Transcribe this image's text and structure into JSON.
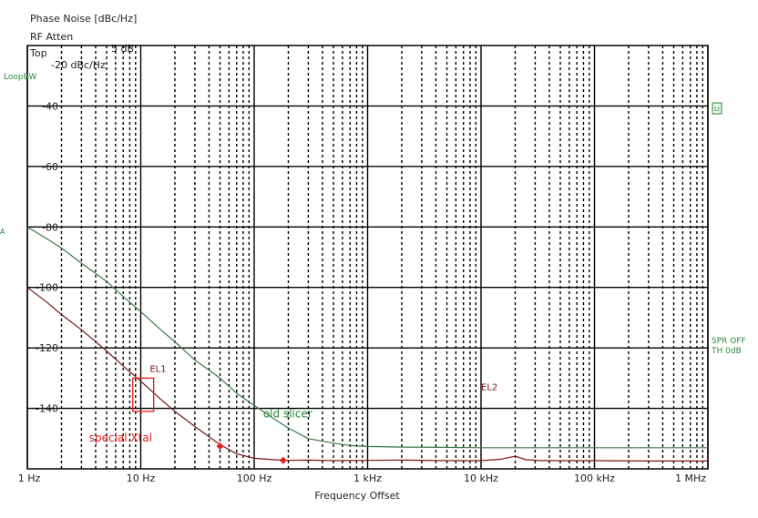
{
  "header": {
    "line1": "Phase Noise [dBc/Hz]",
    "atten_label": "RF Atten",
    "atten_value": "5 dB",
    "top_label": "Top",
    "top_value": "-20 dBc/Hz"
  },
  "side_labels": {
    "loop_bw": "LoopBW",
    "marker_box": "LI",
    "spr_off": "SPR OFF",
    "th": "TH 0dB",
    "left_mark": "A"
  },
  "colors": {
    "series_old": "#3a7a4a",
    "series_xtal": "#7a1515",
    "marker_red": "#dd1f1f",
    "side_green": "#2a8a3a",
    "grid_major": "#000000",
    "grid_minor": "#000000"
  },
  "chart_data": {
    "type": "line",
    "title": "Phase Noise [dBc/Hz]",
    "xlabel": "Frequency Offset",
    "ylabel": "",
    "x_scale": "log",
    "xlim": [
      1,
      1000000
    ],
    "ylim": [
      -160,
      -20
    ],
    "grid": true,
    "x_ticks": [
      {
        "value": 1,
        "label": "1 Hz"
      },
      {
        "value": 10,
        "label": "10 Hz"
      },
      {
        "value": 100,
        "label": "100 Hz"
      },
      {
        "value": 1000,
        "label": "1 kHz"
      },
      {
        "value": 10000,
        "label": "10 kHz"
      },
      {
        "value": 100000,
        "label": "100 kHz"
      },
      {
        "value": 1000000,
        "label": "1 MHz"
      }
    ],
    "y_ticks": [
      {
        "value": -40,
        "label": "-40"
      },
      {
        "value": -60,
        "label": "-60"
      },
      {
        "value": -80,
        "label": "-80"
      },
      {
        "value": -100,
        "label": "-100"
      },
      {
        "value": -120,
        "label": "-120"
      },
      {
        "value": -140,
        "label": "-140"
      }
    ],
    "series": [
      {
        "name": "old slicer",
        "x": [
          1,
          1.5,
          2,
          3,
          5,
          7,
          10,
          15,
          20,
          30,
          50,
          70,
          100,
          150,
          200,
          300,
          500,
          700,
          1000,
          2000,
          5000,
          10000,
          20000,
          50000,
          100000,
          200000,
          500000,
          1000000
        ],
        "y": [
          -80,
          -84,
          -87,
          -92,
          -98,
          -103,
          -108,
          -114,
          -118,
          -124,
          -130,
          -135,
          -139,
          -143.5,
          -146.5,
          -150,
          -151.5,
          -152.3,
          -152.6,
          -152.8,
          -152.9,
          -153,
          -153,
          -153,
          -153,
          -153,
          -153,
          -153
        ]
      },
      {
        "name": "special Xtal",
        "x": [
          1,
          1.5,
          2,
          3,
          5,
          7,
          10,
          15,
          20,
          30,
          50,
          70,
          100,
          150,
          200,
          300,
          500,
          1000,
          2000,
          5000,
          10000,
          15000,
          20000,
          25000,
          35000,
          100000,
          300000,
          1000000
        ],
        "y": [
          -100,
          -105,
          -109,
          -114,
          -121,
          -126,
          -131,
          -137,
          -141,
          -146,
          -152,
          -155,
          -156.5,
          -157,
          -157.2,
          -157.1,
          -157.3,
          -157.2,
          -157.1,
          -157.3,
          -157.3,
          -156.8,
          -155.8,
          -157,
          -157.3,
          -157.3,
          -157.4,
          -157.4
        ]
      }
    ],
    "markers": [
      {
        "series": "special Xtal",
        "x": 50,
        "y": -152.5
      },
      {
        "series": "special Xtal",
        "x": 180,
        "y": -157.2
      }
    ],
    "annotations": [
      {
        "text": "EL1",
        "x": 12,
        "y": -128
      },
      {
        "text": "EL2",
        "x": 10000,
        "y": -134
      },
      {
        "text": "old slicer",
        "x": 120,
        "y": -143
      },
      {
        "text": "special Xtal",
        "x": 3.5,
        "y": -151
      }
    ],
    "highlight_box": {
      "x": [
        8.5,
        13
      ],
      "y": [
        -130,
        -141
      ]
    }
  }
}
